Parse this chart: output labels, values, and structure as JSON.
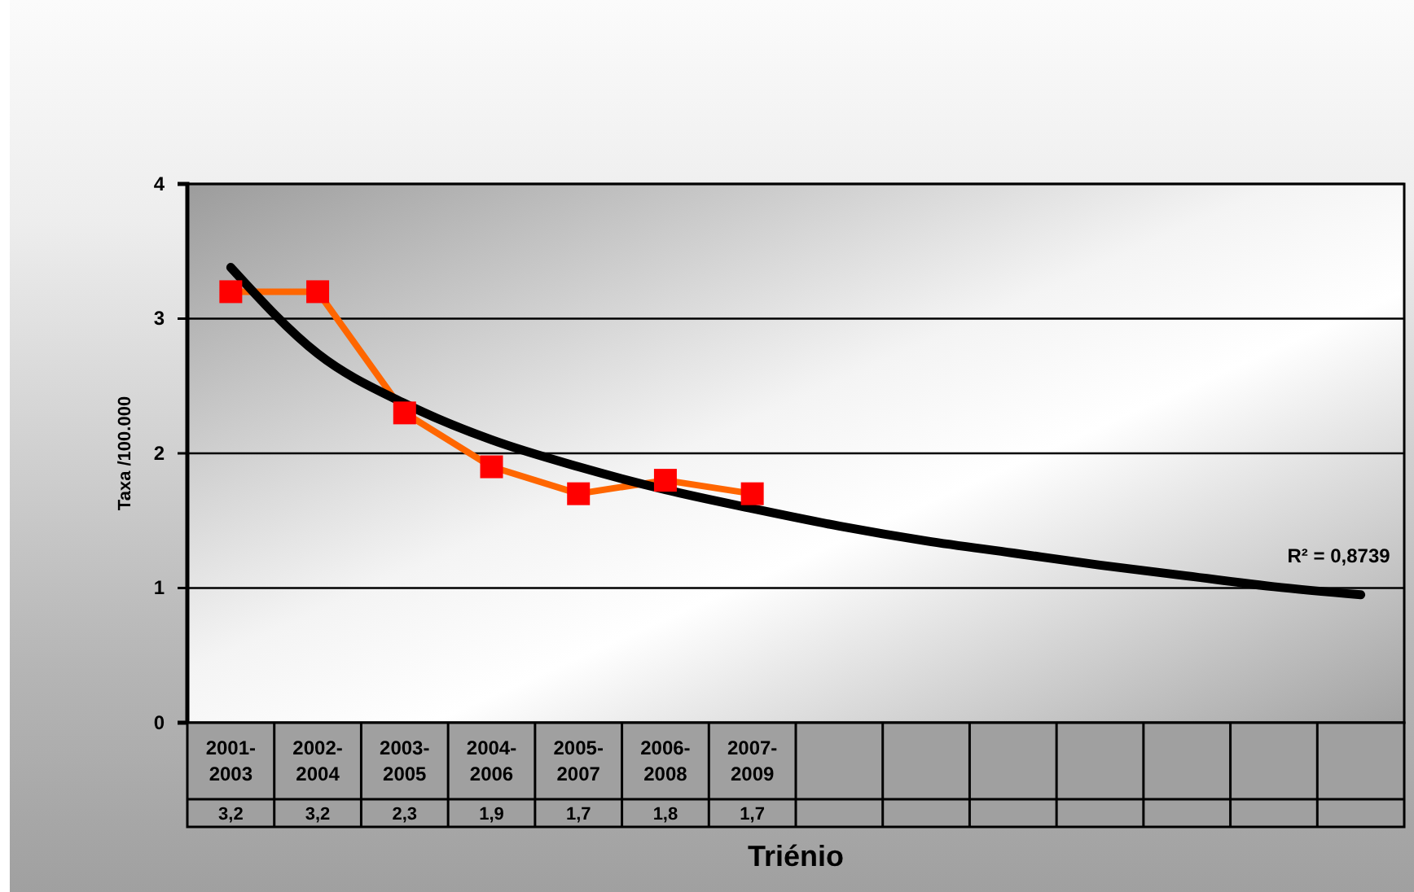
{
  "chart_data": {
    "type": "line",
    "xlabel": "Triénio",
    "ylabel": "Taxa /100.000",
    "categories": [
      "2001-2003",
      "2002-2004",
      "2003-2005",
      "2004-2006",
      "2005-2007",
      "2006-2008",
      "2007-2009",
      null,
      null,
      null,
      null,
      null,
      null,
      null
    ],
    "series": [
      {
        "color": "#ff6600",
        "marker": "square",
        "colors": [
          "#ff0000",
          "#ff0000",
          "#ff0000",
          "#ff0000",
          "#ff0000",
          "#ff0000",
          "#ff0000",
          null,
          null,
          null,
          null,
          null,
          null,
          null
        ],
        "values": [
          3.2,
          3.2,
          2.3,
          1.9,
          1.7,
          1.8,
          1.7,
          null,
          null,
          null,
          null,
          null,
          null,
          null
        ],
        "value_labels": [
          "3,2",
          "3,2",
          "2,3",
          "1,9",
          "1,7",
          "1,8",
          "1,7",
          null,
          null,
          null,
          null,
          null,
          null,
          null
        ]
      },
      {
        "color": "#000000",
        "marker": "none",
        "values": [
          3.38,
          2.74,
          2.37,
          2.1,
          1.9,
          1.73,
          1.59,
          1.46,
          1.35,
          1.26,
          1.17,
          1.09,
          1.01,
          0.95
        ]
      }
    ],
    "ylim": [
      0,
      4
    ],
    "yticks": [
      0,
      1,
      2,
      3,
      4
    ],
    "grid": "y",
    "annotations": [
      "R² = 0,8739"
    ]
  }
}
